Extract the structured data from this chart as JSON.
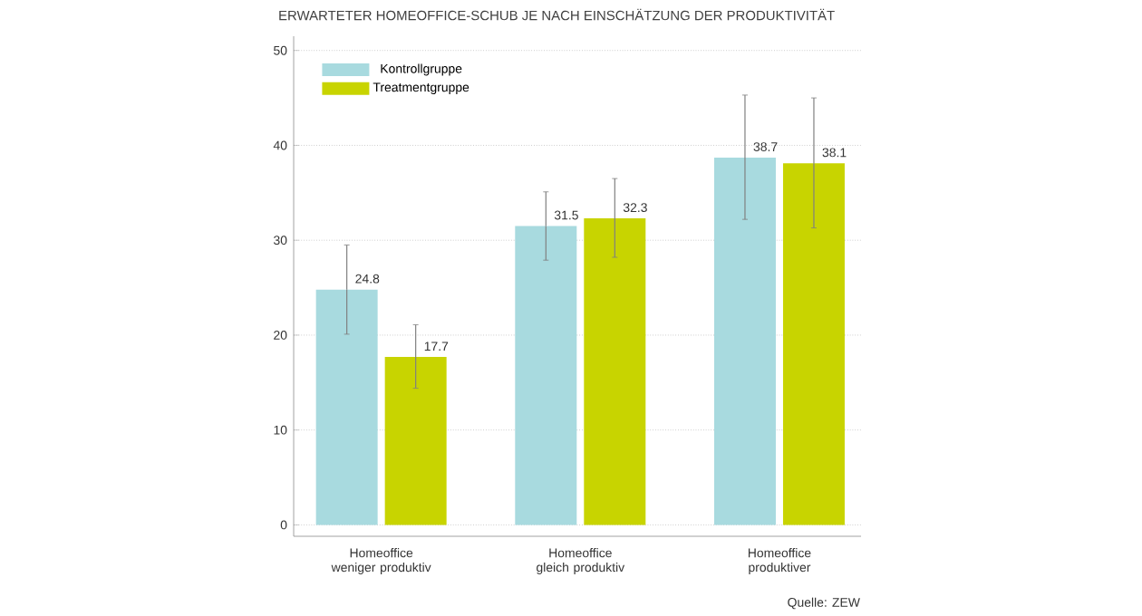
{
  "chart_data": {
    "type": "bar",
    "title": "ERWARTETER HOMEOFFICE-SCHUB JE NACH EINSCHÄTZUNG DER PRODUKTIVITÄT",
    "categories": [
      "Homeoffice weniger produktiv",
      "Homeoffice gleich produktiv",
      "Homeoffice produktiver"
    ],
    "series": [
      {
        "name": "Kontrollgruppe",
        "color": "#a8dadf",
        "values": [
          24.8,
          31.5,
          38.7
        ],
        "errors": [
          [
            20.1,
            29.5
          ],
          [
            27.9,
            35.1
          ],
          [
            32.2,
            45.3
          ]
        ]
      },
      {
        "name": "Treatmentgruppe",
        "color": "#c8d400",
        "values": [
          17.7,
          32.3,
          38.1
        ],
        "errors": [
          [
            14.4,
            21.1
          ],
          [
            28.2,
            36.5
          ],
          [
            31.3,
            45.0
          ]
        ]
      }
    ],
    "ylim": [
      0,
      50
    ],
    "yticks": [
      0,
      10,
      20,
      30,
      40,
      50
    ],
    "grid": "y",
    "legend": "top left",
    "data_labels": true,
    "annotations": [
      "Quelle: ZEW"
    ]
  }
}
